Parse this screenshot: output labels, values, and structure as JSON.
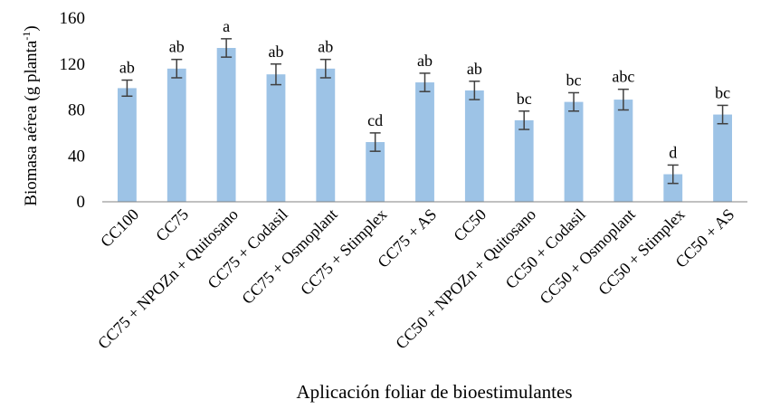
{
  "chart_data": {
    "type": "bar",
    "xlabel": "Aplicación foliar de bioestimulantes",
    "ylabel": "Biomasa aérea (g planta",
    "ylabel_superscript": "-1",
    "ylabel_close": ")",
    "ylim": [
      0,
      160
    ],
    "yticks": [
      0,
      40,
      80,
      120,
      160
    ],
    "grid": false,
    "bar_color": "#9dc3e6",
    "categories": [
      "CC100",
      "CC75",
      "CC75 + NPOZn + Quitosano",
      "CC75 + Codasil",
      "CC75 + Osmoplant",
      "CC75 + Stimplex",
      "CC75 + AS",
      "CC50",
      "CC50 + NPOZn + Quitosano",
      "CC50 + Codasil",
      "CC50 + Osmoplant",
      "CC50 + Stimplex",
      "CC50 + AS"
    ],
    "values": [
      99,
      116,
      134,
      111,
      116,
      52,
      104,
      97,
      71,
      87,
      89,
      24,
      76
    ],
    "errors": [
      7,
      8,
      8,
      9,
      8,
      8,
      8,
      8,
      8,
      8,
      9,
      8,
      8
    ],
    "letters": [
      "ab",
      "ab",
      "a",
      "ab",
      "ab",
      "cd",
      "ab",
      "ab",
      "bc",
      "bc",
      "abc",
      "d",
      "bc"
    ]
  }
}
